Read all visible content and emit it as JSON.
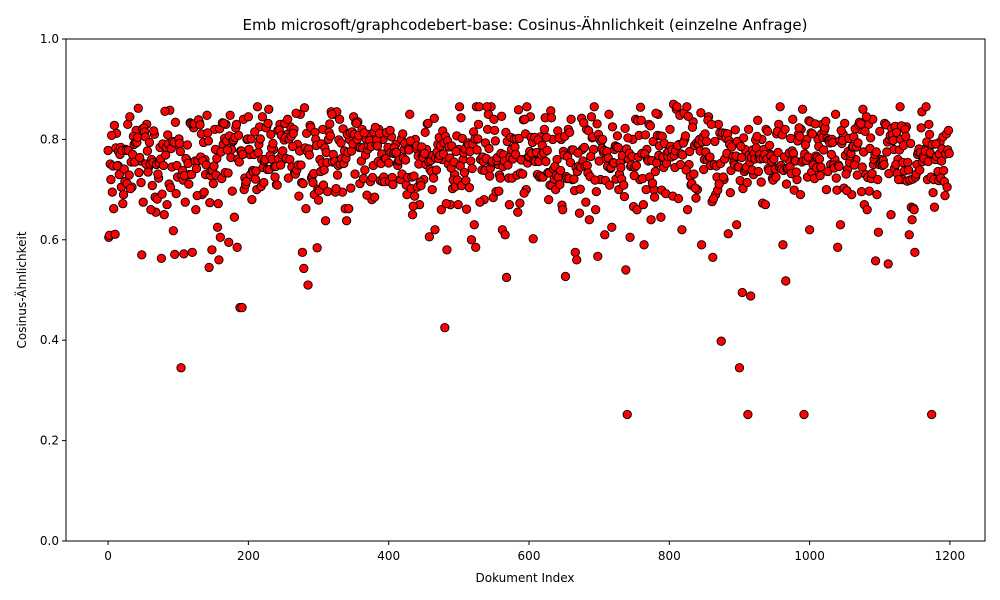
{
  "chart_data": {
    "type": "scatter",
    "title": "Emb microsoft/graphcodebert-base: Cosinus-Ähnlichkeit (einzelne Anfrage)",
    "xlabel": "Dokument Index",
    "ylabel": "Cosinus-Ähnlichkeit",
    "xlim": [
      -60,
      1250
    ],
    "ylim": [
      0.0,
      1.0
    ],
    "xticks": [
      0,
      200,
      400,
      600,
      800,
      1000,
      1200
    ],
    "yticks": [
      0.0,
      0.2,
      0.4,
      0.6,
      0.8,
      1.0
    ],
    "xtick_labels": [
      "0",
      "200",
      "400",
      "600",
      "800",
      "1000",
      "1200"
    ],
    "ytick_labels": [
      "0.0",
      "0.2",
      "0.4",
      "0.6",
      "0.8",
      "1.0"
    ],
    "grid": false,
    "marker_color": "#ff0000",
    "marker_edge_color": "#000000",
    "n_points": 1200,
    "points": [
      [
        0,
        0.778
      ],
      [
        1,
        0.605
      ],
      [
        2,
        0.609
      ],
      [
        4,
        0.72
      ],
      [
        6,
        0.695
      ],
      [
        8,
        0.662
      ],
      [
        10,
        0.611
      ],
      [
        12,
        0.812
      ],
      [
        14,
        0.748
      ],
      [
        16,
        0.73
      ],
      [
        19,
        0.705
      ],
      [
        22,
        0.69
      ],
      [
        25,
        0.78
      ],
      [
        28,
        0.83
      ],
      [
        31,
        0.845
      ],
      [
        34,
        0.705
      ],
      [
        37,
        0.79
      ],
      [
        40,
        0.818
      ],
      [
        43,
        0.862
      ],
      [
        46,
        0.757
      ],
      [
        48,
        0.57
      ],
      [
        50,
        0.675
      ],
      [
        55,
        0.83
      ],
      [
        58,
        0.745
      ],
      [
        62,
        0.76
      ],
      [
        66,
        0.81
      ],
      [
        68,
        0.655
      ],
      [
        72,
        0.723
      ],
      [
        76,
        0.563
      ],
      [
        80,
        0.65
      ],
      [
        84,
        0.67
      ],
      [
        88,
        0.858
      ],
      [
        91,
        0.745
      ],
      [
        93,
        0.618
      ],
      [
        95,
        0.571
      ],
      [
        100,
        0.79
      ],
      [
        104,
        0.345
      ],
      [
        108,
        0.572
      ],
      [
        112,
        0.76
      ],
      [
        116,
        0.73
      ],
      [
        120,
        0.575
      ],
      [
        122,
        0.823
      ],
      [
        125,
        0.66
      ],
      [
        130,
        0.835
      ],
      [
        134,
        0.69
      ],
      [
        138,
        0.76
      ],
      [
        141,
        0.848
      ],
      [
        144,
        0.545
      ],
      [
        148,
        0.58
      ],
      [
        152,
        0.82
      ],
      [
        156,
        0.625
      ],
      [
        158,
        0.56
      ],
      [
        160,
        0.605
      ],
      [
        164,
        0.79
      ],
      [
        168,
        0.83
      ],
      [
        172,
        0.595
      ],
      [
        174,
        0.848
      ],
      [
        176,
        0.78
      ],
      [
        180,
        0.645
      ],
      [
        184,
        0.585
      ],
      [
        188,
        0.465
      ],
      [
        191,
        0.465
      ],
      [
        194,
        0.7
      ],
      [
        198,
        0.8
      ],
      [
        202,
        0.77
      ],
      [
        205,
        0.68
      ],
      [
        208,
        0.77
      ],
      [
        212,
        0.7
      ],
      [
        216,
        0.825
      ],
      [
        220,
        0.845
      ],
      [
        226,
        0.825
      ],
      [
        232,
        0.81
      ],
      [
        236,
        0.78
      ],
      [
        240,
        0.71
      ],
      [
        245,
        0.83
      ],
      [
        250,
        0.76
      ],
      [
        255,
        0.81
      ],
      [
        260,
        0.825
      ],
      [
        265,
        0.82
      ],
      [
        270,
        0.79
      ],
      [
        274,
        0.85
      ],
      [
        277,
        0.575
      ],
      [
        279,
        0.543
      ],
      [
        282,
        0.662
      ],
      [
        285,
        0.51
      ],
      [
        290,
        0.723
      ],
      [
        294,
        0.69
      ],
      [
        298,
        0.584
      ],
      [
        302,
        0.76
      ],
      [
        306,
        0.82
      ],
      [
        310,
        0.638
      ],
      [
        314,
        0.8
      ],
      [
        318,
        0.855
      ],
      [
        322,
        0.85
      ],
      [
        326,
        0.855
      ],
      [
        330,
        0.84
      ],
      [
        334,
        0.695
      ],
      [
        338,
        0.662
      ],
      [
        340,
        0.638
      ],
      [
        344,
        0.8
      ],
      [
        350,
        0.845
      ],
      [
        356,
        0.835
      ],
      [
        362,
        0.82
      ],
      [
        368,
        0.8
      ],
      [
        372,
        0.81
      ],
      [
        376,
        0.68
      ],
      [
        380,
        0.685
      ],
      [
        386,
        0.82
      ],
      [
        392,
        0.8
      ],
      [
        398,
        0.81
      ],
      [
        404,
        0.805
      ],
      [
        410,
        0.79
      ],
      [
        416,
        0.76
      ],
      [
        422,
        0.78
      ],
      [
        426,
        0.69
      ],
      [
        430,
        0.85
      ],
      [
        434,
        0.65
      ],
      [
        438,
        0.8
      ],
      [
        444,
        0.67
      ],
      [
        450,
        0.72
      ],
      [
        454,
        0.78
      ],
      [
        458,
        0.606
      ],
      [
        462,
        0.7
      ],
      [
        466,
        0.62
      ],
      [
        470,
        0.79
      ],
      [
        476,
        0.76
      ],
      [
        480,
        0.425
      ],
      [
        483,
        0.58
      ],
      [
        488,
        0.67
      ],
      [
        494,
        0.73
      ],
      [
        500,
        0.78
      ],
      [
        506,
        0.76
      ],
      [
        512,
        0.79
      ],
      [
        518,
        0.6
      ],
      [
        522,
        0.63
      ],
      [
        524,
        0.585
      ],
      [
        528,
        0.83
      ],
      [
        532,
        0.76
      ],
      [
        536,
        0.68
      ],
      [
        542,
        0.85
      ],
      [
        546,
        0.865
      ],
      [
        550,
        0.84
      ],
      [
        556,
        0.75
      ],
      [
        562,
        0.62
      ],
      [
        566,
        0.61
      ],
      [
        568,
        0.525
      ],
      [
        572,
        0.67
      ],
      [
        578,
        0.78
      ],
      [
        584,
        0.655
      ],
      [
        590,
        0.76
      ],
      [
        596,
        0.7
      ],
      [
        602,
        0.845
      ],
      [
        606,
        0.602
      ],
      [
        610,
        0.76
      ],
      [
        616,
        0.805
      ],
      [
        622,
        0.82
      ],
      [
        628,
        0.68
      ],
      [
        634,
        0.8
      ],
      [
        640,
        0.76
      ],
      [
        646,
        0.8
      ],
      [
        652,
        0.527
      ],
      [
        656,
        0.82
      ],
      [
        662,
        0.72
      ],
      [
        666,
        0.575
      ],
      [
        668,
        0.56
      ],
      [
        672,
        0.653
      ],
      [
        676,
        0.78
      ],
      [
        682,
        0.82
      ],
      [
        686,
        0.64
      ],
      [
        692,
        0.78
      ],
      [
        698,
        0.567
      ],
      [
        702,
        0.72
      ],
      [
        708,
        0.61
      ],
      [
        714,
        0.85
      ],
      [
        718,
        0.625
      ],
      [
        722,
        0.78
      ],
      [
        728,
        0.7
      ],
      [
        734,
        0.76
      ],
      [
        738,
        0.54
      ],
      [
        740,
        0.252
      ],
      [
        744,
        0.605
      ],
      [
        748,
        0.8
      ],
      [
        752,
        0.84
      ],
      [
        758,
        0.72
      ],
      [
        764,
        0.59
      ],
      [
        768,
        0.78
      ],
      [
        774,
        0.64
      ],
      [
        778,
        0.7
      ],
      [
        784,
        0.85
      ],
      [
        788,
        0.645
      ],
      [
        794,
        0.76
      ],
      [
        800,
        0.78
      ],
      [
        806,
        0.87
      ],
      [
        810,
        0.86
      ],
      [
        814,
        0.79
      ],
      [
        818,
        0.62
      ],
      [
        822,
        0.8
      ],
      [
        828,
        0.75
      ],
      [
        834,
        0.835
      ],
      [
        840,
        0.7
      ],
      [
        846,
        0.59
      ],
      [
        850,
        0.76
      ],
      [
        856,
        0.845
      ],
      [
        862,
        0.565
      ],
      [
        866,
        0.69
      ],
      [
        870,
        0.83
      ],
      [
        874,
        0.398
      ],
      [
        878,
        0.72
      ],
      [
        884,
        0.612
      ],
      [
        890,
        0.79
      ],
      [
        896,
        0.63
      ],
      [
        900,
        0.345
      ],
      [
        904,
        0.495
      ],
      [
        908,
        0.78
      ],
      [
        912,
        0.252
      ],
      [
        916,
        0.488
      ],
      [
        920,
        0.73
      ],
      [
        926,
        0.838
      ],
      [
        932,
        0.8
      ],
      [
        938,
        0.82
      ],
      [
        944,
        0.77
      ],
      [
        950,
        0.74
      ],
      [
        956,
        0.83
      ],
      [
        962,
        0.59
      ],
      [
        966,
        0.518
      ],
      [
        970,
        0.76
      ],
      [
        976,
        0.84
      ],
      [
        982,
        0.72
      ],
      [
        988,
        0.82
      ],
      [
        992,
        0.252
      ],
      [
        996,
        0.8
      ],
      [
        1000,
        0.62
      ],
      [
        1006,
        0.76
      ],
      [
        1012,
        0.8
      ],
      [
        1018,
        0.83
      ],
      [
        1024,
        0.7
      ],
      [
        1030,
        0.75
      ],
      [
        1036,
        0.76
      ],
      [
        1040,
        0.585
      ],
      [
        1044,
        0.63
      ],
      [
        1048,
        0.81
      ],
      [
        1054,
        0.74
      ],
      [
        1060,
        0.69
      ],
      [
        1066,
        0.76
      ],
      [
        1072,
        0.82
      ],
      [
        1078,
        0.67
      ],
      [
        1084,
        0.83
      ],
      [
        1090,
        0.84
      ],
      [
        1094,
        0.558
      ],
      [
        1098,
        0.615
      ],
      [
        1102,
        0.76
      ],
      [
        1108,
        0.83
      ],
      [
        1112,
        0.552
      ],
      [
        1116,
        0.65
      ],
      [
        1120,
        0.78
      ],
      [
        1126,
        0.76
      ],
      [
        1132,
        0.72
      ],
      [
        1138,
        0.825
      ],
      [
        1142,
        0.61
      ],
      [
        1146,
        0.64
      ],
      [
        1150,
        0.575
      ],
      [
        1154,
        0.77
      ],
      [
        1160,
        0.855
      ],
      [
        1164,
        0.78
      ],
      [
        1170,
        0.83
      ],
      [
        1174,
        0.252
      ],
      [
        1178,
        0.665
      ],
      [
        1182,
        0.76
      ],
      [
        1186,
        0.795
      ],
      [
        1190,
        0.805
      ]
    ]
  }
}
